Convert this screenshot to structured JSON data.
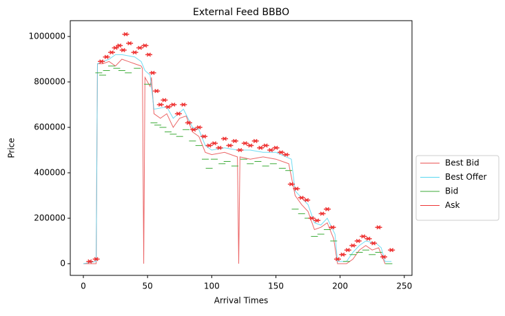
{
  "chart_data": {
    "type": "line",
    "title": "External Feed BBBO",
    "x_label": "Arrival Times",
    "y_label": "Price",
    "xlim": [
      -10.2,
      256
    ],
    "ylim": [
      -51500,
      1069700
    ],
    "xticks": [
      0,
      50,
      100,
      150,
      200,
      250
    ],
    "yticks": [
      0,
      200000,
      400000,
      600000,
      800000,
      1000000
    ],
    "legend": "outside-right",
    "series": [
      {
        "name": "Best Bid",
        "color": "#e8494a",
        "marker": "line",
        "x": [
          0,
          10,
          11,
          15,
          20,
          25,
          30,
          35,
          40,
          45,
          46,
          47,
          48,
          52,
          53,
          55,
          60,
          65,
          70,
          75,
          80,
          85,
          90,
          95,
          100,
          110,
          115,
          120,
          121,
          122,
          130,
          140,
          150,
          155,
          160,
          165,
          170,
          175,
          180,
          185,
          190,
          195,
          198,
          205,
          210,
          215,
          220,
          225,
          230,
          235,
          240
        ],
        "y": [
          0,
          0,
          880000,
          880000,
          890000,
          870000,
          900000,
          890000,
          880000,
          870000,
          860000,
          0,
          820000,
          780000,
          820000,
          660000,
          640000,
          660000,
          600000,
          640000,
          650000,
          580000,
          560000,
          490000,
          480000,
          490000,
          480000,
          470000,
          0,
          470000,
          460000,
          470000,
          460000,
          450000,
          440000,
          300000,
          260000,
          230000,
          150000,
          160000,
          180000,
          110000,
          0,
          0,
          20000,
          60000,
          80000,
          60000,
          70000,
          0,
          0
        ]
      },
      {
        "name": "Best Offer",
        "color": "#56d6f0",
        "marker": "line",
        "x": [
          0,
          10,
          11,
          20,
          25,
          30,
          40,
          45,
          48,
          52,
          55,
          65,
          70,
          78,
          85,
          90,
          95,
          100,
          110,
          120,
          130,
          140,
          150,
          158,
          162,
          165,
          170,
          175,
          180,
          185,
          190,
          196,
          198,
          205,
          210,
          215,
          220,
          228,
          232,
          235,
          240
        ],
        "y": [
          0,
          10000,
          880000,
          900000,
          920000,
          920000,
          910000,
          890000,
          850000,
          830000,
          680000,
          690000,
          640000,
          680000,
          600000,
          590000,
          520000,
          500000,
          510000,
          500000,
          500000,
          490000,
          490000,
          470000,
          460000,
          320000,
          290000,
          260000,
          180000,
          170000,
          200000,
          130000,
          10000,
          10000,
          50000,
          80000,
          100000,
          90000,
          70000,
          10000,
          10000
        ]
      },
      {
        "name": "Bid",
        "color": "#3aaa35",
        "marker": "dash",
        "x": [
          12,
          15,
          18,
          22,
          26,
          30,
          35,
          42,
          50,
          55,
          58,
          62,
          66,
          70,
          75,
          80,
          85,
          90,
          95,
          98,
          102,
          108,
          112,
          118,
          125,
          130,
          136,
          142,
          148,
          155,
          160,
          165,
          170,
          175,
          180,
          185,
          190,
          195,
          205,
          210,
          215,
          220,
          225,
          230,
          238
        ],
        "y": [
          840000,
          830000,
          850000,
          870000,
          860000,
          850000,
          840000,
          860000,
          790000,
          620000,
          610000,
          600000,
          580000,
          570000,
          560000,
          590000,
          540000,
          520000,
          460000,
          420000,
          460000,
          440000,
          450000,
          430000,
          460000,
          440000,
          450000,
          430000,
          440000,
          420000,
          410000,
          240000,
          220000,
          200000,
          120000,
          130000,
          150000,
          100000,
          10000,
          40000,
          50000,
          60000,
          40000,
          50000,
          0
        ]
      },
      {
        "name": "Ask",
        "color": "#ee3333",
        "marker": "x",
        "x": [
          5,
          10,
          14,
          18,
          22,
          25,
          28,
          31,
          33,
          36,
          40,
          44,
          48,
          51,
          54,
          57,
          60,
          63,
          66,
          70,
          74,
          78,
          82,
          86,
          90,
          94,
          98,
          102,
          106,
          110,
          114,
          118,
          122,
          126,
          130,
          134,
          138,
          142,
          146,
          150,
          154,
          158,
          162,
          166,
          170,
          174,
          178,
          182,
          186,
          190,
          194,
          198,
          202,
          206,
          210,
          214,
          218,
          222,
          226,
          230,
          234,
          240
        ],
        "y": [
          10000,
          20000,
          890000,
          910000,
          930000,
          950000,
          960000,
          940000,
          1010000,
          970000,
          930000,
          950000,
          960000,
          920000,
          840000,
          760000,
          700000,
          720000,
          690000,
          700000,
          660000,
          700000,
          620000,
          590000,
          600000,
          560000,
          520000,
          530000,
          510000,
          550000,
          520000,
          540000,
          500000,
          530000,
          520000,
          540000,
          510000,
          520000,
          500000,
          510000,
          490000,
          480000,
          350000,
          330000,
          290000,
          280000,
          200000,
          190000,
          220000,
          240000,
          160000,
          20000,
          40000,
          60000,
          80000,
          100000,
          120000,
          110000,
          90000,
          160000,
          30000,
          60000
        ]
      }
    ]
  }
}
